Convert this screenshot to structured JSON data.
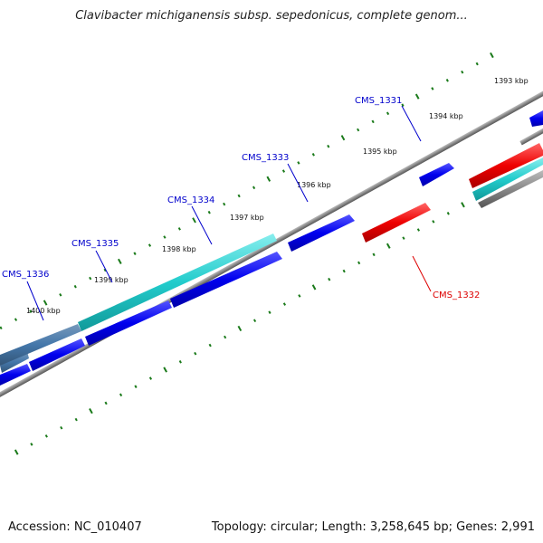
{
  "title": "Clavibacter michiganensis subsp. sepedonicus, complete genom...",
  "footer": {
    "accession": "Accession: NC_010407",
    "summary": "Topology: circular; Length: 3,258,645 bp; Genes: 2,991"
  },
  "colors": {
    "forward_gene": "#0000ee",
    "reverse_gene": "#ee0000",
    "highlight_gene": "#22cccc",
    "backbone": "#888888",
    "tick": "#1a7a1a",
    "label_forward": "#0000cc",
    "label_reverse": "#dd0000"
  },
  "ticks": [
    {
      "label": "1393 kbp"
    },
    {
      "label": "1394 kbp"
    },
    {
      "label": "1395 kbp"
    },
    {
      "label": "1396 kbp"
    },
    {
      "label": "1397 kbp"
    },
    {
      "label": "1398 kbp"
    },
    {
      "label": "1399 kbp"
    },
    {
      "label": "1400 kbp"
    }
  ],
  "gene_labels": [
    {
      "name": "CMS_1331",
      "strand": "forward"
    },
    {
      "name": "CMS_1333",
      "strand": "forward"
    },
    {
      "name": "CMS_1334",
      "strand": "forward"
    },
    {
      "name": "CMS_1335",
      "strand": "forward"
    },
    {
      "name": "CMS_1336",
      "strand": "forward"
    },
    {
      "name": "CMS_1332",
      "strand": "reverse"
    }
  ]
}
